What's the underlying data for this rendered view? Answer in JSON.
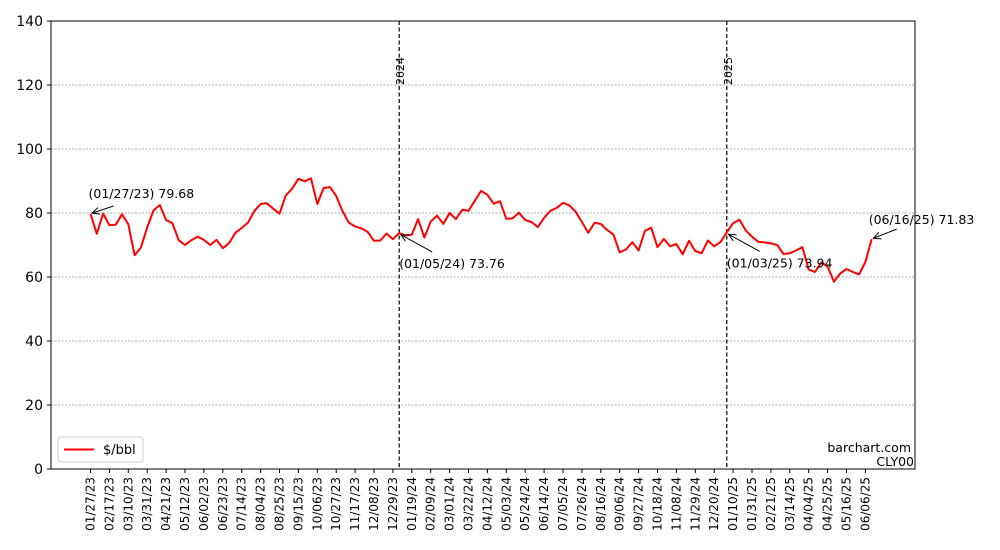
{
  "chart_data": {
    "type": "line",
    "ylim": [
      0,
      140
    ],
    "y_ticks": [
      0,
      20,
      40,
      60,
      80,
      100,
      120,
      140
    ],
    "grid": "horizontal dashed",
    "legend_position": "lower-left",
    "x_tick_labels": [
      "01/27/23",
      "02/17/23",
      "03/10/23",
      "03/31/23",
      "04/21/23",
      "05/12/23",
      "06/02/23",
      "06/23/23",
      "07/14/23",
      "08/04/23",
      "08/25/23",
      "09/15/23",
      "10/06/23",
      "10/27/23",
      "11/17/23",
      "12/08/23",
      "12/29/23",
      "01/19/24",
      "02/09/24",
      "03/01/24",
      "03/22/24",
      "04/12/24",
      "05/03/24",
      "05/24/24",
      "06/14/24",
      "07/05/24",
      "07/26/24",
      "08/16/24",
      "09/06/24",
      "09/27/24",
      "10/18/24",
      "11/08/24",
      "11/29/24",
      "12/20/24",
      "01/10/25",
      "01/31/25",
      "02/21/25",
      "03/14/25",
      "04/04/25",
      "04/25/25",
      "05/16/25",
      "06/06/25"
    ],
    "series": [
      {
        "name": "$/bbl",
        "color": "#ff0000",
        "values": [
          79.68,
          73.5,
          79.8,
          76.2,
          76.3,
          79.6,
          76.5,
          66.8,
          69.2,
          75.5,
          80.8,
          82.5,
          77.8,
          76.8,
          71.5,
          70.0,
          71.5,
          72.6,
          71.6,
          70.0,
          71.6,
          69.0,
          70.6,
          73.8,
          75.3,
          77.0,
          80.6,
          82.8,
          83.1,
          81.3,
          79.8,
          85.5,
          87.6,
          90.7,
          89.9,
          90.8,
          82.8,
          87.8,
          88.1,
          85.3,
          80.6,
          77.0,
          75.8,
          75.2,
          74.1,
          71.3,
          71.4,
          73.6,
          71.8,
          73.76,
          73.0,
          73.2,
          78.1,
          72.3,
          77.3,
          79.2,
          76.6,
          80.0,
          78.1,
          81.0,
          80.7,
          83.8,
          86.9,
          85.7,
          82.9,
          83.7,
          78.2,
          78.3,
          80.1,
          77.8,
          77.2,
          75.6,
          78.5,
          80.7,
          81.6,
          83.2,
          82.4,
          80.4,
          77.2,
          73.8,
          76.9,
          76.6,
          74.7,
          73.3,
          67.7,
          68.6,
          70.9,
          68.3,
          74.4,
          75.4,
          69.3,
          71.9,
          69.6,
          70.3,
          67.1,
          71.3,
          68.1,
          67.4,
          71.4,
          69.6,
          70.9,
          73.94,
          76.8,
          77.9,
          74.6,
          72.6,
          71.0,
          70.8,
          70.5,
          70.0,
          67.2,
          67.4,
          68.3,
          69.3,
          62.3,
          61.6,
          64.5,
          63.3,
          58.5,
          61.1,
          62.5,
          61.6,
          60.8,
          64.7,
          71.83
        ]
      }
    ],
    "vlines": [
      {
        "label": "2024",
        "index": 49
      },
      {
        "label": "2025",
        "index": 101
      }
    ],
    "annotations": [
      {
        "index": 0,
        "text": "(01/27/23) 79.68"
      },
      {
        "index": 49,
        "text": "(01/05/24) 73.76"
      },
      {
        "index": 101,
        "text": "(01/03/25) 73.94"
      },
      {
        "index": 124,
        "text": "(06/16/25) 71.83"
      }
    ],
    "watermark": [
      "barchart.com",
      "CLY00"
    ]
  }
}
